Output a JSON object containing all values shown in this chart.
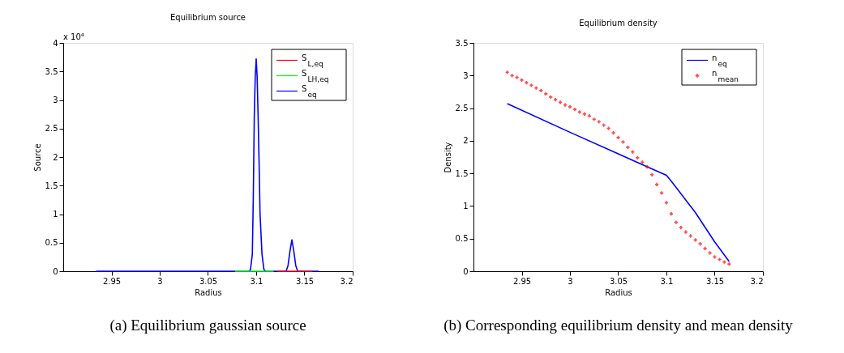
{
  "chart_data": [
    {
      "type": "line",
      "title": "Equilibrium source",
      "xlabel": "Radius",
      "ylabel": "Source",
      "xlim": [
        2.9,
        3.2
      ],
      "xticks": [
        2.95,
        3,
        3.05,
        3.1,
        3.15,
        3.2
      ],
      "ylim": [
        0,
        4
      ],
      "yticks": [
        0,
        0.5,
        1,
        1.5,
        2,
        2.5,
        3,
        3.5,
        4
      ],
      "grid": false,
      "legend": "top right",
      "annotations": [
        "x 10⁴",
        "(a) Equilibrium gaussian source"
      ],
      "series": [
        {
          "name": "S$_{L,eq}$",
          "color": "#ff0000",
          "x": [
            3.122,
            3.158
          ],
          "values": [
            0,
            0
          ]
        },
        {
          "name": "S$_{LH,eq}$",
          "color": "#00ff00",
          "x": [
            3.078,
            3.118
          ],
          "values": [
            0,
            0
          ]
        },
        {
          "name": "S$_{eq}$",
          "color": "#0000ff",
          "x": [
            2.934,
            3.092,
            3.094,
            3.096,
            3.097,
            3.098,
            3.099,
            3.1,
            3.101,
            3.102,
            3.103,
            3.104,
            3.106,
            3.108,
            3.11,
            3.131,
            3.133,
            3.135,
            3.137,
            3.139,
            3.141,
            3.143,
            3.165
          ],
          "values": [
            0,
            0,
            0.02,
            0.3,
            1.3,
            2.7,
            3.4,
            3.72,
            3.4,
            2.7,
            1.9,
            1.0,
            0.3,
            0.03,
            0,
            0,
            0.1,
            0.35,
            0.55,
            0.35,
            0.1,
            0,
            0
          ]
        }
      ]
    },
    {
      "type": "line",
      "title": "Equilibrium density",
      "xlabel": "Radius",
      "ylabel": "Density",
      "xlim": [
        2.9,
        3.2
      ],
      "xticks": [
        2.95,
        3,
        3.05,
        3.1,
        3.15,
        3.2
      ],
      "ylim": [
        0,
        3.5
      ],
      "yticks": [
        0,
        0.5,
        1,
        1.5,
        2,
        2.5,
        3,
        3.5
      ],
      "grid": false,
      "legend": "top right",
      "annotations": [
        "(b) Corresponding equilibrium density and mean density"
      ],
      "series": [
        {
          "name": "n$_{eq}$",
          "color": "#0000ff",
          "x": [
            2.935,
            3.0,
            3.05,
            3.08,
            3.1,
            3.105,
            3.13,
            3.15,
            3.165
          ],
          "values": [
            2.57,
            2.13,
            1.8,
            1.6,
            1.47,
            1.38,
            0.9,
            0.45,
            0.15
          ]
        },
        {
          "name": "n$_{mean}$",
          "type": "scatter",
          "marker": "cross",
          "color": "#ff0000",
          "x": [
            2.935,
            2.94,
            2.945,
            2.95,
            2.955,
            2.96,
            2.965,
            2.97,
            2.975,
            2.98,
            2.985,
            2.99,
            2.995,
            3.0,
            3.005,
            3.01,
            3.015,
            3.02,
            3.025,
            3.03,
            3.035,
            3.04,
            3.045,
            3.05,
            3.055,
            3.06,
            3.065,
            3.07,
            3.075,
            3.08,
            3.085,
            3.09,
            3.095,
            3.1,
            3.105,
            3.11,
            3.115,
            3.12,
            3.125,
            3.13,
            3.135,
            3.14,
            3.145,
            3.15,
            3.155,
            3.16,
            3.165
          ],
          "values": [
            3.05,
            3.0,
            2.97,
            2.93,
            2.89,
            2.85,
            2.81,
            2.77,
            2.72,
            2.67,
            2.63,
            2.59,
            2.55,
            2.52,
            2.48,
            2.44,
            2.41,
            2.38,
            2.33,
            2.29,
            2.24,
            2.19,
            2.12,
            2.05,
            1.98,
            1.9,
            1.83,
            1.74,
            1.67,
            1.6,
            1.48,
            1.33,
            1.2,
            1.05,
            0.88,
            0.75,
            0.67,
            0.6,
            0.54,
            0.48,
            0.42,
            0.35,
            0.28,
            0.22,
            0.18,
            0.14,
            0.11
          ]
        }
      ]
    }
  ]
}
